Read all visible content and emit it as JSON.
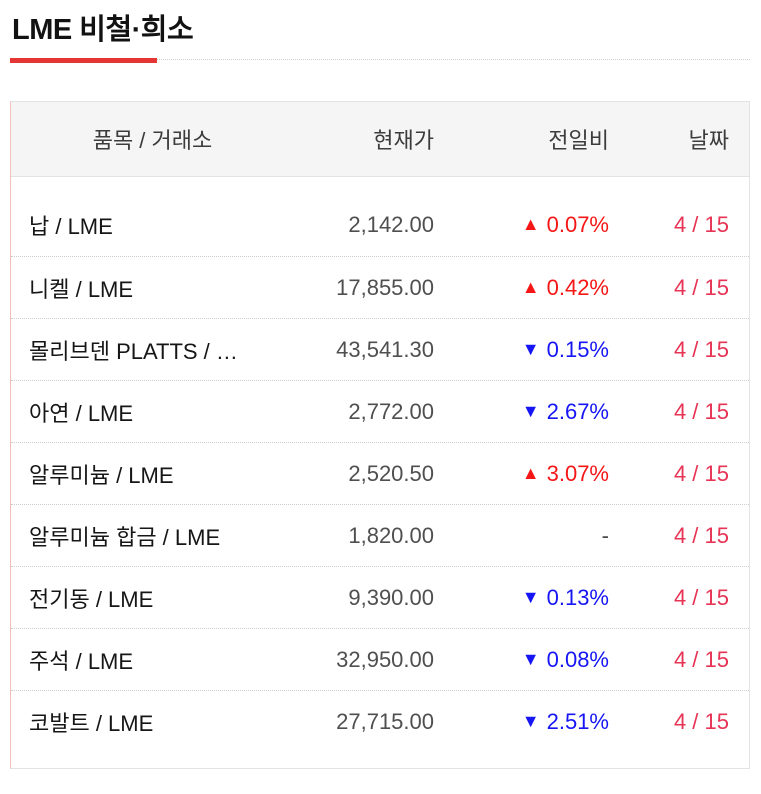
{
  "page": {
    "title": "LME 비철·희소"
  },
  "icons": {
    "up_arrow": "▲",
    "down_arrow": "▼"
  },
  "colors": {
    "accent_underline": "#e53535",
    "up": "#f51616",
    "down": "#1616f5",
    "date": "#e73455",
    "header_background": "#f5f5f5",
    "table_border": "#e3e3e3",
    "table_border_left": "#f3bfbf"
  },
  "table": {
    "headers": {
      "item": "품목 / 거래소",
      "price": "현재가",
      "change": "전일비",
      "date": "날짜"
    },
    "rows": [
      {
        "item": "납 / LME",
        "price": "2,142.00",
        "direction": "up",
        "change": "0.07%",
        "date": "4 / 15"
      },
      {
        "item": "니켈 / LME",
        "price": "17,855.00",
        "direction": "up",
        "change": "0.42%",
        "date": "4 / 15"
      },
      {
        "item": "몰리브덴 PLATTS / …",
        "price": "43,541.30",
        "direction": "down",
        "change": "0.15%",
        "date": "4 / 15"
      },
      {
        "item": "아연 / LME",
        "price": "2,772.00",
        "direction": "down",
        "change": "2.67%",
        "date": "4 / 15"
      },
      {
        "item": "알루미늄 / LME",
        "price": "2,520.50",
        "direction": "up",
        "change": "3.07%",
        "date": "4 / 15"
      },
      {
        "item": "알루미늄 합금 / LME",
        "price": "1,820.00",
        "direction": "flat",
        "change": "-",
        "date": "4 / 15"
      },
      {
        "item": "전기동 / LME",
        "price": "9,390.00",
        "direction": "down",
        "change": "0.13%",
        "date": "4 / 15"
      },
      {
        "item": "주석 / LME",
        "price": "32,950.00",
        "direction": "down",
        "change": "0.08%",
        "date": "4 / 15"
      },
      {
        "item": "코발트 / LME",
        "price": "27,715.00",
        "direction": "down",
        "change": "2.51%",
        "date": "4 / 15"
      }
    ]
  }
}
